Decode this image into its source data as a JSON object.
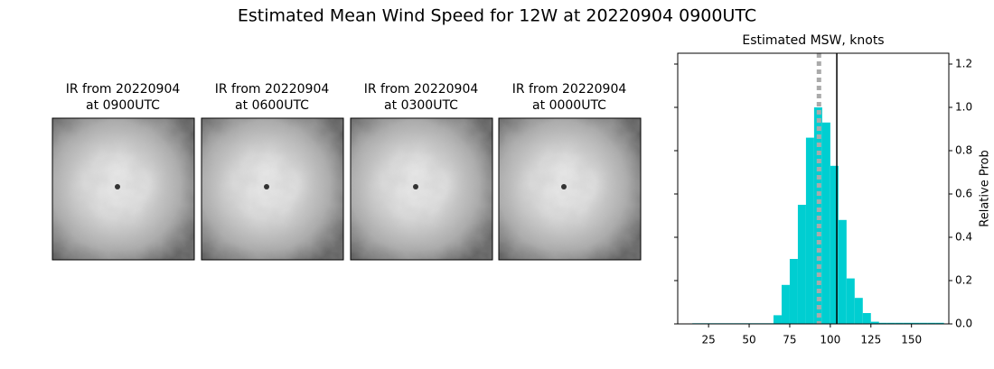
{
  "title": "Estimated Mean Wind Speed for 12W at 20220904 0900UTC",
  "panels": [
    {
      "title": [
        "IR from 20220904",
        "at 0900UTC"
      ]
    },
    {
      "title": [
        "IR from 20220904",
        "at 0600UTC"
      ]
    },
    {
      "title": [
        "IR from 20220904",
        "at 0300UTC"
      ]
    },
    {
      "title": [
        "IR from 20220904",
        "at 0000UTC"
      ]
    }
  ],
  "chart_data": {
    "type": "histogram",
    "title": "Estimated MSW, knots",
    "y_label": "Relative Prob",
    "color": "#00ced1",
    "bins": [
      15,
      20,
      25,
      30,
      35,
      40,
      45,
      50,
      55,
      60,
      65,
      70,
      75,
      80,
      85,
      90,
      95,
      100,
      105,
      110,
      115,
      120,
      125,
      130,
      135,
      140,
      145,
      150,
      155,
      160,
      165,
      170
    ],
    "values": [
      0.003,
      0.003,
      0.003,
      0.003,
      0.003,
      0.003,
      0.003,
      0.003,
      0.003,
      0.003,
      0.04,
      0.18,
      0.3,
      0.55,
      0.86,
      1.0,
      0.93,
      0.73,
      0.48,
      0.21,
      0.12,
      0.05,
      0.01,
      0.005,
      0.005,
      0.005,
      0.005,
      0.005,
      0.005,
      0.005,
      0.005
    ],
    "vlines": [
      {
        "value": 93,
        "color": "#aaaaaa",
        "style": "dotted"
      },
      {
        "value": 104,
        "color": "#000000",
        "style": "solid"
      }
    ],
    "xlim": [
      6,
      173
    ],
    "xticks": [
      25,
      50,
      75,
      100,
      125,
      150
    ],
    "ylim": [
      0,
      1.25
    ],
    "yticks": [
      {
        "value": 0,
        "label": "0.0"
      },
      0.2,
      0.4,
      0.6,
      0.8,
      {
        "value": 1,
        "label": "1.0"
      },
      1.2
    ]
  }
}
